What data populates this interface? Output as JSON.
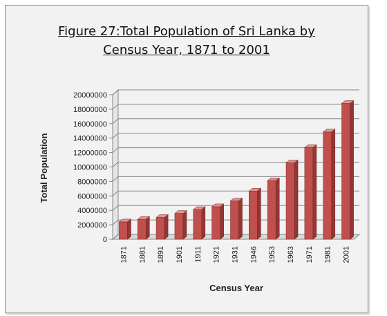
{
  "figure": {
    "title_line1": "Figure  27:Total Population of Sri Lanka by",
    "title_line2": "Census Year, 1871 to 2001"
  },
  "chart_data": {
    "type": "bar",
    "style": "3d-column",
    "xlabel": "Census Year",
    "ylabel": "Total Population",
    "ylim": [
      0,
      20000000
    ],
    "ytick_step": 2000000,
    "yticks": [
      "0",
      "2000000",
      "4000000",
      "6000000",
      "8000000",
      "10000000",
      "12000000",
      "14000000",
      "16000000",
      "18000000",
      "20000000"
    ],
    "categories": [
      "1871",
      "1881",
      "1891",
      "1901",
      "1911",
      "1921",
      "1931",
      "1946",
      "1953",
      "1963",
      "1971",
      "1981",
      "2001"
    ],
    "values": [
      2400000,
      2760000,
      3010000,
      3570000,
      4110000,
      4500000,
      5310000,
      6660000,
      8100000,
      10580000,
      12690000,
      14850000,
      18800000
    ],
    "grid": true,
    "legend": "none",
    "bar_color": "#c0504d"
  }
}
